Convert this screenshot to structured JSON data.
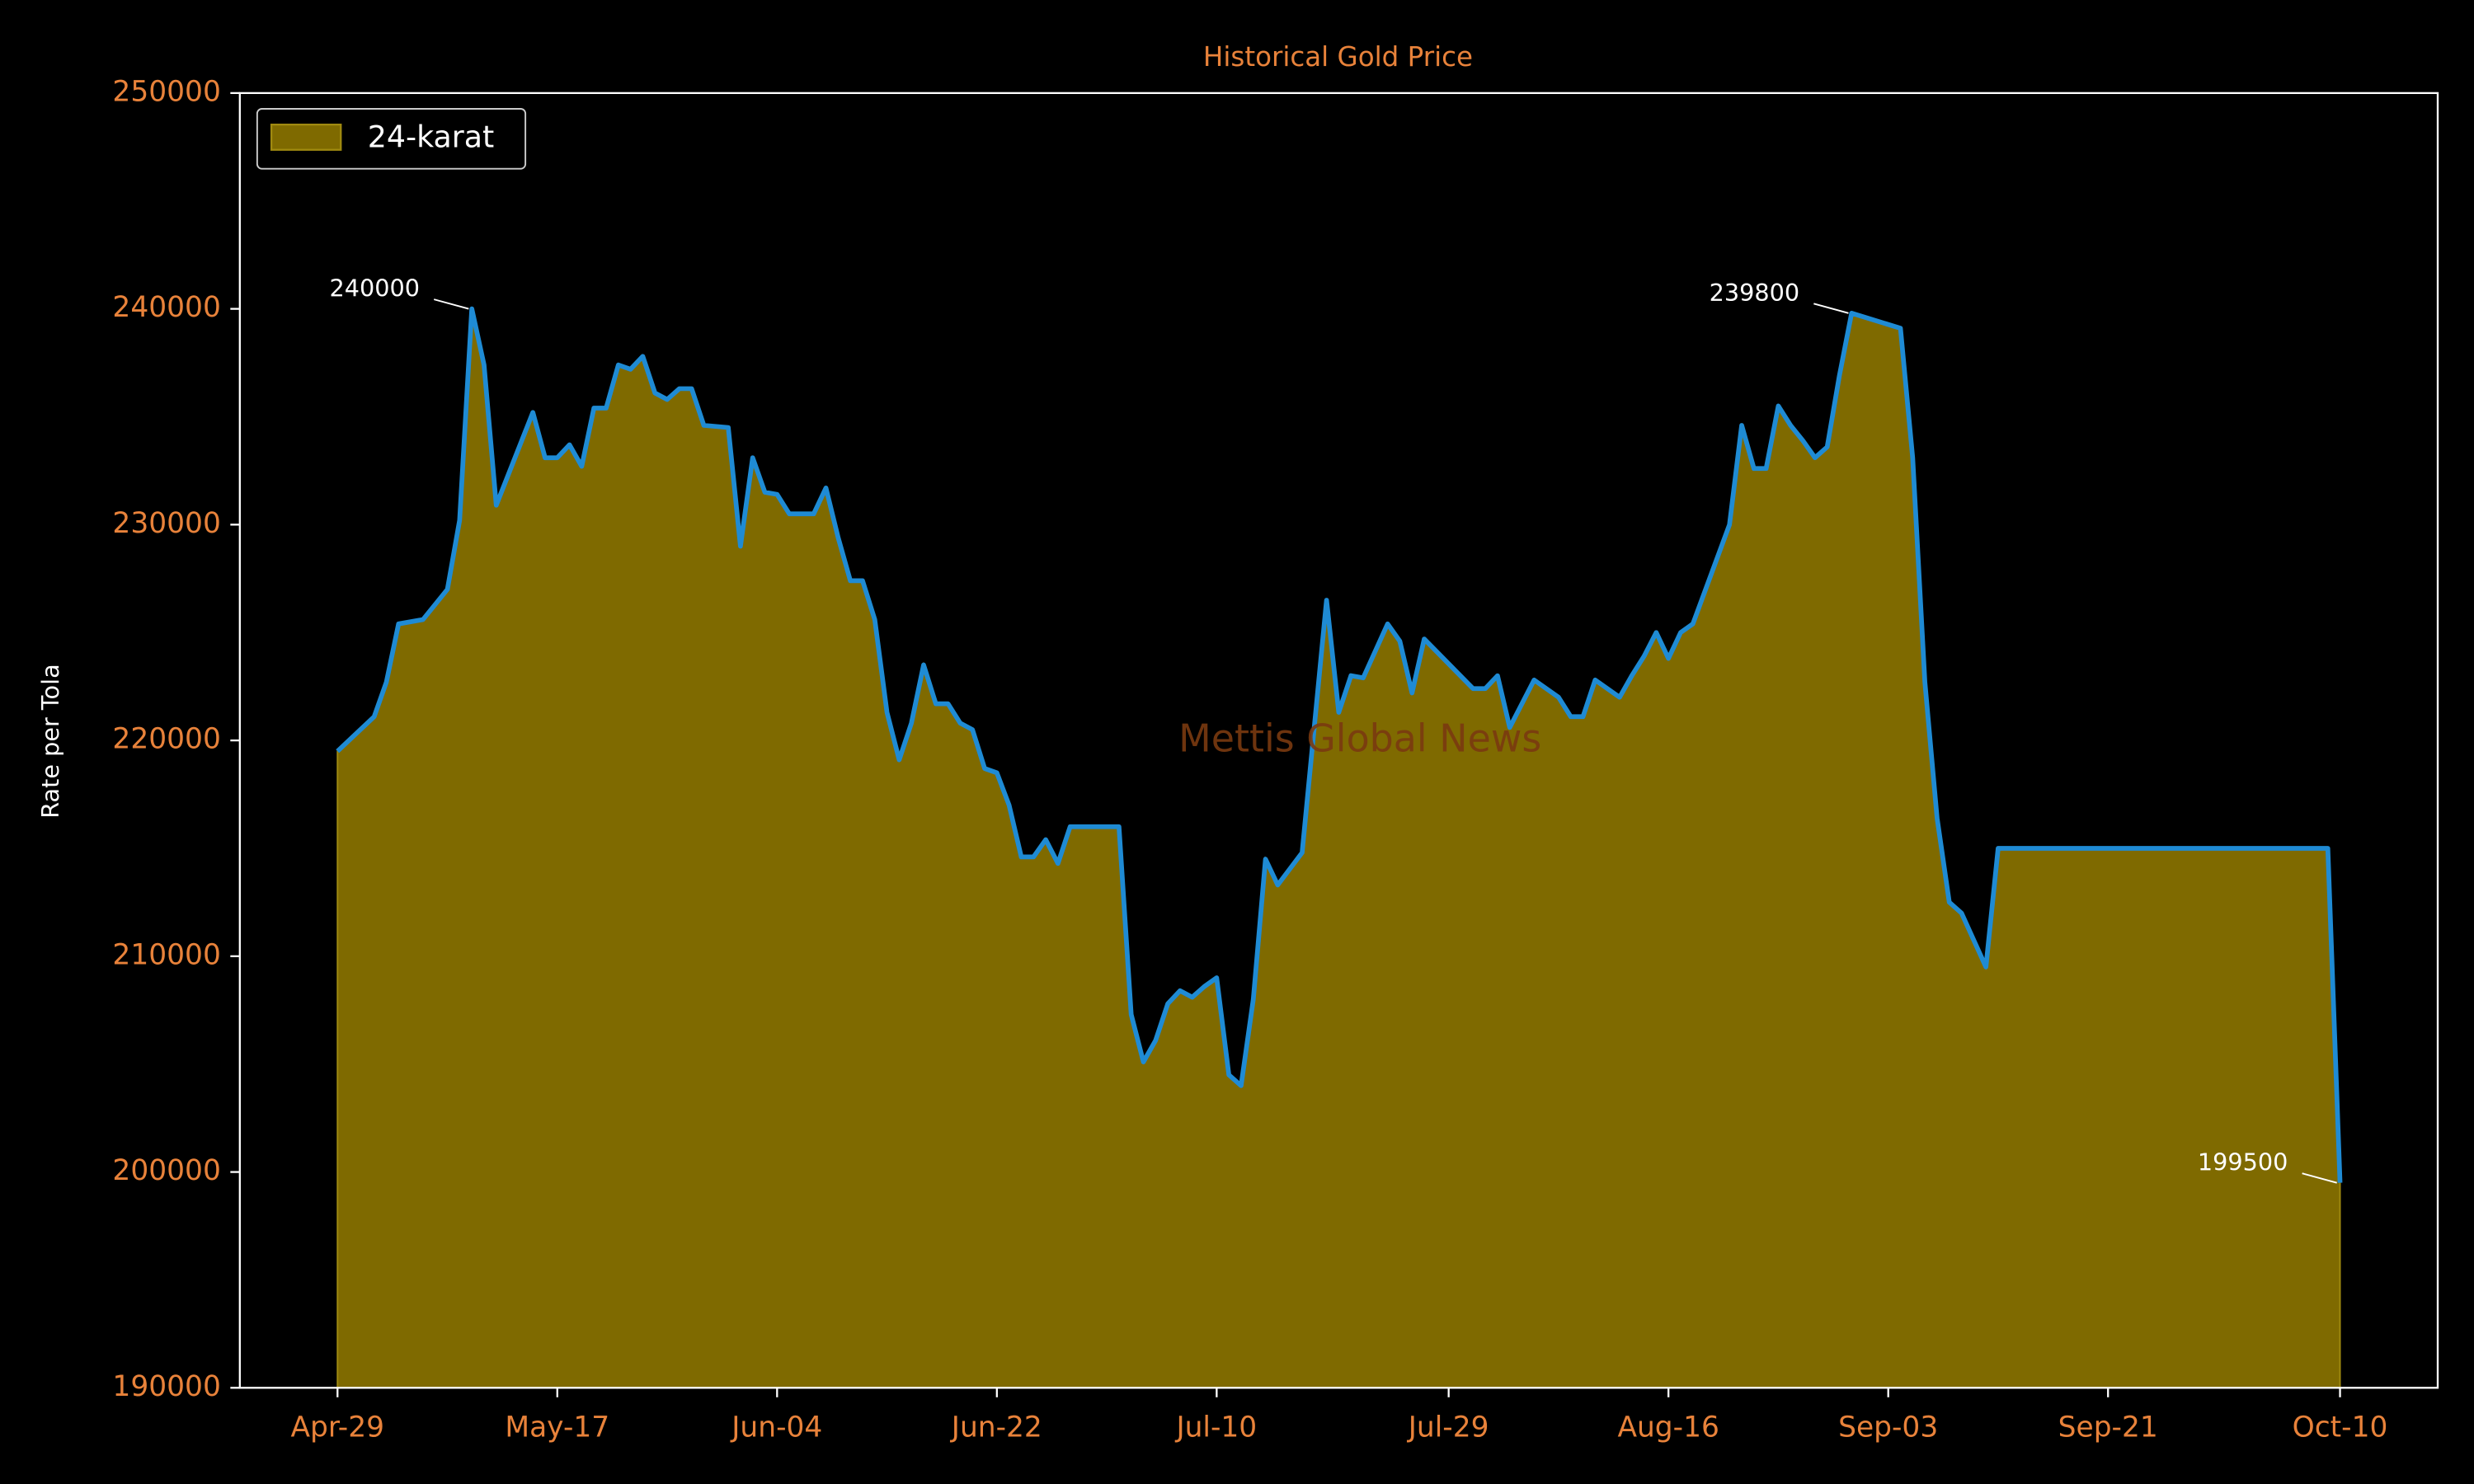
{
  "chart_data": {
    "type": "area",
    "title": "Historical Gold Price",
    "ylabel": "Rate per Tola",
    "watermark": "Mettis Global News",
    "x": [
      "Apr-29",
      "May-02",
      "May-03",
      "May-04",
      "May-06",
      "May-08",
      "May-09",
      "May-10",
      "May-11",
      "May-12",
      "May-15",
      "May-16",
      "May-17",
      "May-18",
      "May-19",
      "May-20",
      "May-21",
      "May-22",
      "May-23",
      "May-24",
      "May-25",
      "May-26",
      "May-27",
      "May-28",
      "May-29",
      "May-31",
      "Jun-01",
      "Jun-02",
      "Jun-03",
      "Jun-04",
      "Jun-05",
      "Jun-07",
      "Jun-08",
      "Jun-09",
      "Jun-10",
      "Jun-11",
      "Jun-12",
      "Jun-13",
      "Jun-14",
      "Jun-15",
      "Jun-16",
      "Jun-17",
      "Jun-18",
      "Jun-19",
      "Jun-20",
      "Jun-21",
      "Jun-22",
      "Jun-23",
      "Jun-24",
      "Jun-25",
      "Jun-26",
      "Jun-27",
      "Jun-28",
      "Jul-02",
      "Jul-03",
      "Jul-04",
      "Jul-05",
      "Jul-06",
      "Jul-07",
      "Jul-08",
      "Jul-09",
      "Jul-10",
      "Jul-11",
      "Jul-12",
      "Jul-13",
      "Jul-14",
      "Jul-15",
      "Jul-17",
      "Jul-19",
      "Jul-20",
      "Jul-21",
      "Jul-22",
      "Jul-24",
      "Jul-25",
      "Jul-26",
      "Jul-27",
      "Jul-31",
      "Aug-01",
      "Aug-02",
      "Aug-03",
      "Aug-05",
      "Aug-07",
      "Aug-08",
      "Aug-09",
      "Aug-10",
      "Aug-12",
      "Aug-13",
      "Aug-14",
      "Aug-15",
      "Aug-16",
      "Aug-17",
      "Aug-18",
      "Aug-21",
      "Aug-22",
      "Aug-23",
      "Aug-24",
      "Aug-25",
      "Aug-26",
      "Aug-27",
      "Aug-28",
      "Aug-29",
      "Aug-30",
      "Aug-31",
      "Sep-04",
      "Sep-05",
      "Sep-06",
      "Sep-07",
      "Sep-08",
      "Sep-09",
      "Sep-11",
      "Sep-12",
      "Oct-09",
      "Oct-10"
    ],
    "series": [
      {
        "name": "24-karat",
        "color": "#1f8bd4",
        "fill": "#7f6a00",
        "values": [
          219500,
          221100,
          222700,
          225400,
          225600,
          227000,
          230200,
          240000,
          237400,
          230900,
          235200,
          233100,
          233100,
          233700,
          232700,
          235400,
          235400,
          237400,
          237200,
          237800,
          236100,
          235800,
          236300,
          236300,
          234600,
          234500,
          229000,
          233100,
          231500,
          231400,
          230500,
          230500,
          231700,
          229400,
          227400,
          227400,
          225600,
          221300,
          219100,
          220800,
          223500,
          221700,
          221700,
          220800,
          220500,
          218700,
          218500,
          217000,
          214600,
          214600,
          215400,
          214300,
          216000,
          216000,
          207300,
          205100,
          206100,
          207800,
          208400,
          208100,
          208600,
          209000,
          204500,
          204000,
          208000,
          214500,
          213300,
          214800,
          226500,
          221300,
          223000,
          222900,
          225400,
          224600,
          222200,
          224700,
          222400,
          222400,
          223000,
          220600,
          222800,
          222000,
          221100,
          221100,
          222800,
          222000,
          223000,
          223900,
          225000,
          223800,
          225000,
          225400,
          230000,
          234600,
          232600,
          232600,
          235500,
          234600,
          233900,
          233100,
          233600,
          236900,
          239800,
          239100,
          233100,
          222700,
          216400,
          212500,
          212000,
          209500,
          215000,
          215000,
          199500
        ]
      }
    ],
    "annotations": [
      {
        "x": "May-10",
        "value": 240000
      },
      {
        "x": "Aug-31",
        "value": 239800
      },
      {
        "x": "Oct-10",
        "value": 199500
      }
    ],
    "xlim": [
      "Apr-21",
      "Oct-18"
    ],
    "xticks": [
      "Apr-29",
      "May-17",
      "Jun-04",
      "Jun-22",
      "Jul-10",
      "Jul-29",
      "Aug-16",
      "Sep-03",
      "Sep-21",
      "Oct-10"
    ],
    "ylim": [
      190000,
      250000
    ],
    "yticks": [
      190000,
      200000,
      210000,
      220000,
      230000,
      240000,
      250000
    ],
    "legend": "upper left"
  }
}
